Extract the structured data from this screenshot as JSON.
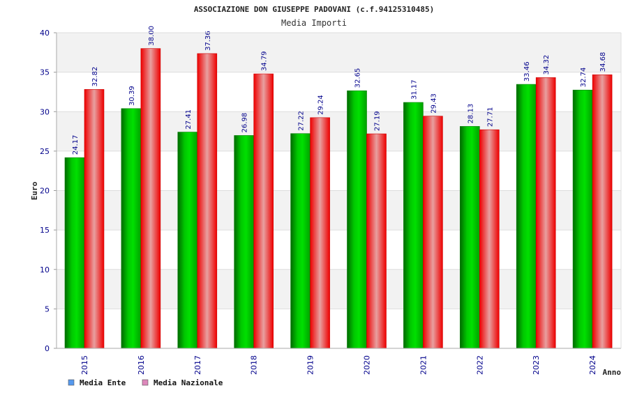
{
  "chart_data": {
    "type": "bar",
    "title": "ASSOCIAZIONE DON GIUSEPPE PADOVANI (c.f.94125310485)",
    "subtitle": "Media Importi",
    "xlabel": "Anno",
    "ylabel": "Euro",
    "ylim": [
      0,
      40
    ],
    "yticks": [
      "0",
      "5",
      "10",
      "15",
      "20",
      "25",
      "30",
      "35",
      "40"
    ],
    "grid": true,
    "legend_position": "bottom-left",
    "categories": [
      "2015",
      "2016",
      "2017",
      "2018",
      "2019",
      "2020",
      "2021",
      "2022",
      "2023",
      "2024"
    ],
    "series": [
      {
        "name": "Media Ente",
        "color": "#00b000",
        "legend_color": "#5599ee",
        "values": [
          24.17,
          30.39,
          27.41,
          26.98,
          27.22,
          32.65,
          31.17,
          28.13,
          33.46,
          32.74
        ],
        "labels": [
          "24.17",
          "30.39",
          "27.41",
          "26.98",
          "27.22",
          "32.65",
          "31.17",
          "28.13",
          "33.46",
          "32.74"
        ]
      },
      {
        "name": "Media Nazionale",
        "color": "#ff0000",
        "legend_color": "#dd88bb",
        "values": [
          32.82,
          38.0,
          37.36,
          34.79,
          29.24,
          27.19,
          29.43,
          27.71,
          34.32,
          34.68
        ],
        "labels": [
          "32.82",
          "38.00",
          "37.36",
          "34.79",
          "29.24",
          "27.19",
          "29.43",
          "27.71",
          "34.32",
          "34.68"
        ]
      }
    ]
  }
}
